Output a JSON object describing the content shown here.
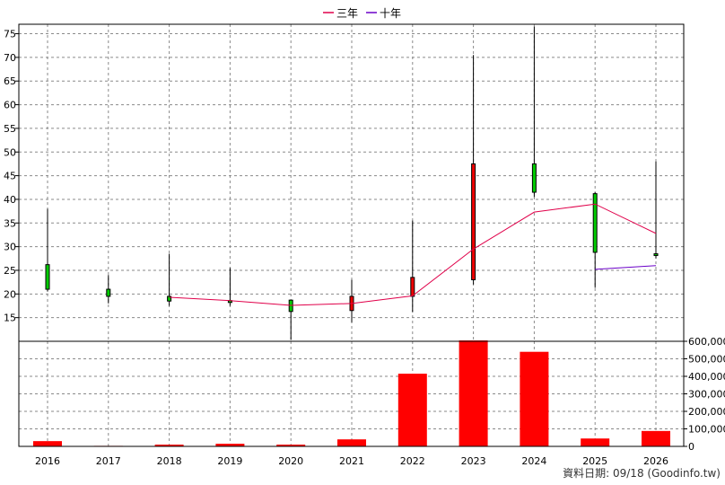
{
  "chart_data": [
    {
      "type": "candlestick-line",
      "ylim": [
        10,
        77
      ],
      "yticks": [
        15,
        20,
        25,
        30,
        35,
        40,
        45,
        50,
        55,
        60,
        65,
        70,
        75
      ],
      "categories": [
        "2016",
        "2017",
        "2018",
        "2019",
        "2020",
        "2021",
        "2022",
        "2023",
        "2024",
        "2025",
        "2026"
      ],
      "legend": [
        {
          "name": "三年",
          "color": "#e0004a"
        },
        {
          "name": "十年",
          "color": "#6a00c8"
        }
      ],
      "candles": [
        {
          "x": "2016",
          "open": 21,
          "high": 38,
          "low": 20.5,
          "close": 26.2,
          "color": "#00cc00"
        },
        {
          "x": "2017",
          "open": 19.5,
          "high": 24,
          "low": 18,
          "close": 21,
          "color": "#00cc00"
        },
        {
          "x": "2018",
          "open": 18.5,
          "high": 28.5,
          "low": 17.5,
          "close": 19.5,
          "color": "#00cc00"
        },
        {
          "x": "2019",
          "open": 18.2,
          "high": 25.5,
          "low": 17.5,
          "close": 18.6,
          "color": "#00cc00"
        },
        {
          "x": "2020",
          "open": 16.3,
          "high": 18.8,
          "low": 10.3,
          "close": 18.7,
          "color": "#00cc00"
        },
        {
          "x": "2021",
          "open": 16.5,
          "high": 23,
          "low": 14,
          "close": 19.5,
          "color": "#ee0000"
        },
        {
          "x": "2022",
          "open": 19.5,
          "high": 35.5,
          "low": 16.2,
          "close": 23.5,
          "color": "#ee0000"
        },
        {
          "x": "2023",
          "open": 23,
          "high": 70.5,
          "low": 22,
          "close": 47.5,
          "color": "#ee0000"
        },
        {
          "x": "2024",
          "open": 41.5,
          "high": 76.5,
          "low": 40.5,
          "close": 47.5,
          "color": "#00cc00"
        },
        {
          "x": "2025",
          "open": 28.8,
          "high": 41.5,
          "low": 21.3,
          "close": 41.2,
          "color": "#00cc00"
        },
        {
          "x": "2026",
          "open": 28.5,
          "high": 48,
          "low": 27.5,
          "close": 28.5,
          "color": "#00cc00"
        }
      ],
      "series": [
        {
          "name": "三年",
          "color": "#e0004a",
          "points": [
            [
              "2018",
              19.3
            ],
            [
              "2019",
              18.6
            ],
            [
              "2020",
              17.6
            ],
            [
              "2021",
              18.0
            ],
            [
              "2022",
              19.6
            ],
            [
              "2023",
              29.5
            ],
            [
              "2024",
              37.3
            ],
            [
              "2025",
              39.0
            ],
            [
              "2026",
              32.8
            ]
          ]
        },
        {
          "name": "十年",
          "color": "#6a00c8",
          "points": [
            [
              "2025",
              25.2
            ],
            [
              "2026",
              26.0
            ]
          ]
        }
      ]
    },
    {
      "type": "bar",
      "ylim": [
        0,
        600000
      ],
      "yticks": [
        "0",
        "100,000",
        "200,000",
        "300,000",
        "400,000",
        "500,000",
        "600,000"
      ],
      "categories": [
        "2016",
        "2017",
        "2018",
        "2019",
        "2020",
        "2021",
        "2022",
        "2023",
        "2024",
        "2025",
        "2026"
      ],
      "values": [
        30000,
        3000,
        10000,
        15000,
        10000,
        40000,
        415000,
        605000,
        540000,
        45000,
        88000
      ],
      "color": "#ff0000"
    }
  ],
  "footer": "資料日期: 09/18 (Goodinfo.tw)"
}
